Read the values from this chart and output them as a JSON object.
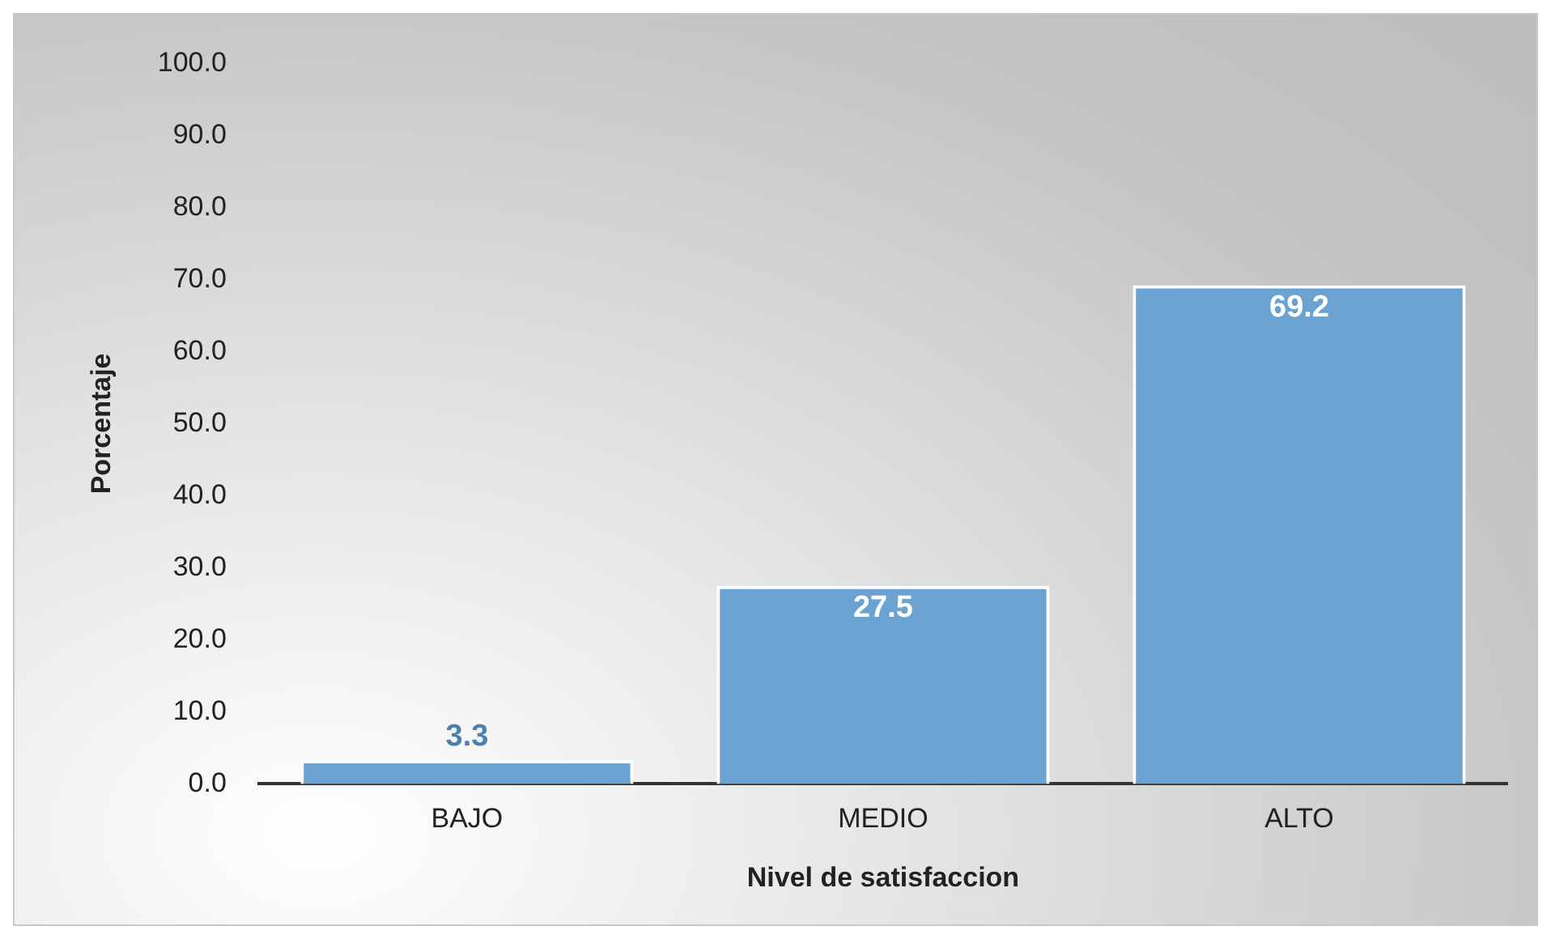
{
  "chart_data": {
    "type": "bar",
    "xlabel": "Nivel de satisfaccion",
    "ylabel": "Porcentaje",
    "categories": [
      "BAJO",
      "MEDIO",
      "ALTO"
    ],
    "values": [
      3.3,
      27.5,
      69.2
    ],
    "color": "#6aa2d2",
    "ylim": [
      0,
      100
    ],
    "yticks": [
      {
        "value": 0,
        "label": "0.0"
      },
      {
        "value": 10,
        "label": "10.0"
      },
      {
        "value": 20,
        "label": "20.0"
      },
      {
        "value": 30,
        "label": "30.0"
      },
      {
        "value": 40,
        "label": "40.0"
      },
      {
        "value": 50,
        "label": "50.0"
      },
      {
        "value": 60,
        "label": "60.0"
      },
      {
        "value": 70,
        "label": "70.0"
      },
      {
        "value": 80,
        "label": "80.0"
      },
      {
        "value": 90,
        "label": "90.0"
      },
      {
        "value": 100,
        "label": "100.0"
      }
    ],
    "data_labels": true,
    "grid": false,
    "legend": false
  }
}
